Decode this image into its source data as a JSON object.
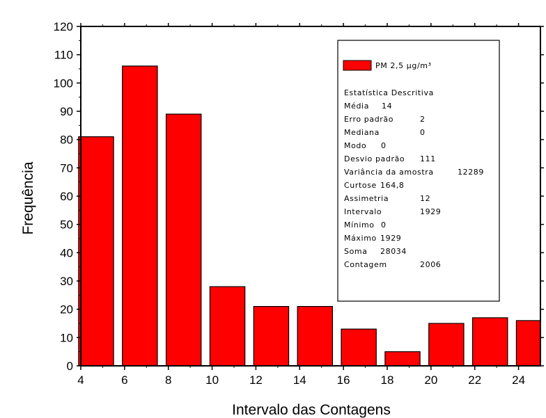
{
  "chart_data": {
    "type": "bar",
    "xlabel": "Intervalo das Contagens",
    "ylabel": "Frequência",
    "xlim": [
      4,
      25
    ],
    "ylim": [
      0,
      120
    ],
    "xticks": [
      4,
      6,
      8,
      10,
      12,
      14,
      16,
      18,
      20,
      22,
      24
    ],
    "yticks": [
      0,
      10,
      20,
      30,
      40,
      50,
      60,
      70,
      80,
      90,
      100,
      110,
      120
    ],
    "bar_width": 1.6,
    "bar_color": "#ff0000",
    "x": [
      4,
      6,
      8,
      10,
      12,
      14,
      16,
      18,
      20,
      22,
      24
    ],
    "values": [
      81,
      106,
      89,
      28,
      21,
      21,
      13,
      5,
      15,
      17,
      16
    ],
    "series": [
      {
        "name": "PM 2,5 µg/m³",
        "values": [
          81,
          106,
          89,
          28,
          21,
          21,
          13,
          5,
          15,
          17,
          16
        ]
      }
    ],
    "legend_position": "top-right",
    "legend": {
      "series_label": "PM 2,5 µg/m³",
      "stats_title": "Estatística Descritiva",
      "stats": [
        {
          "label": "Média",
          "value": "14"
        },
        {
          "label": "Erro padrão",
          "value": "2"
        },
        {
          "label": "Mediana",
          "value": "0"
        },
        {
          "label": "Modo",
          "value": "0"
        },
        {
          "label": "Desvio padrão",
          "value": "111"
        },
        {
          "label": "Variância da amostra",
          "value": "12289"
        },
        {
          "label": "Curtose",
          "value": "164,8"
        },
        {
          "label": "Assimetria",
          "value": "12"
        },
        {
          "label": "Intervalo",
          "value": "1929"
        },
        {
          "label": "Mínimo",
          "value": "0"
        },
        {
          "label": "Máximo",
          "value": "1929"
        },
        {
          "label": "Soma",
          "value": "28034"
        },
        {
          "label": "Contagem",
          "value": "2006"
        }
      ]
    }
  }
}
